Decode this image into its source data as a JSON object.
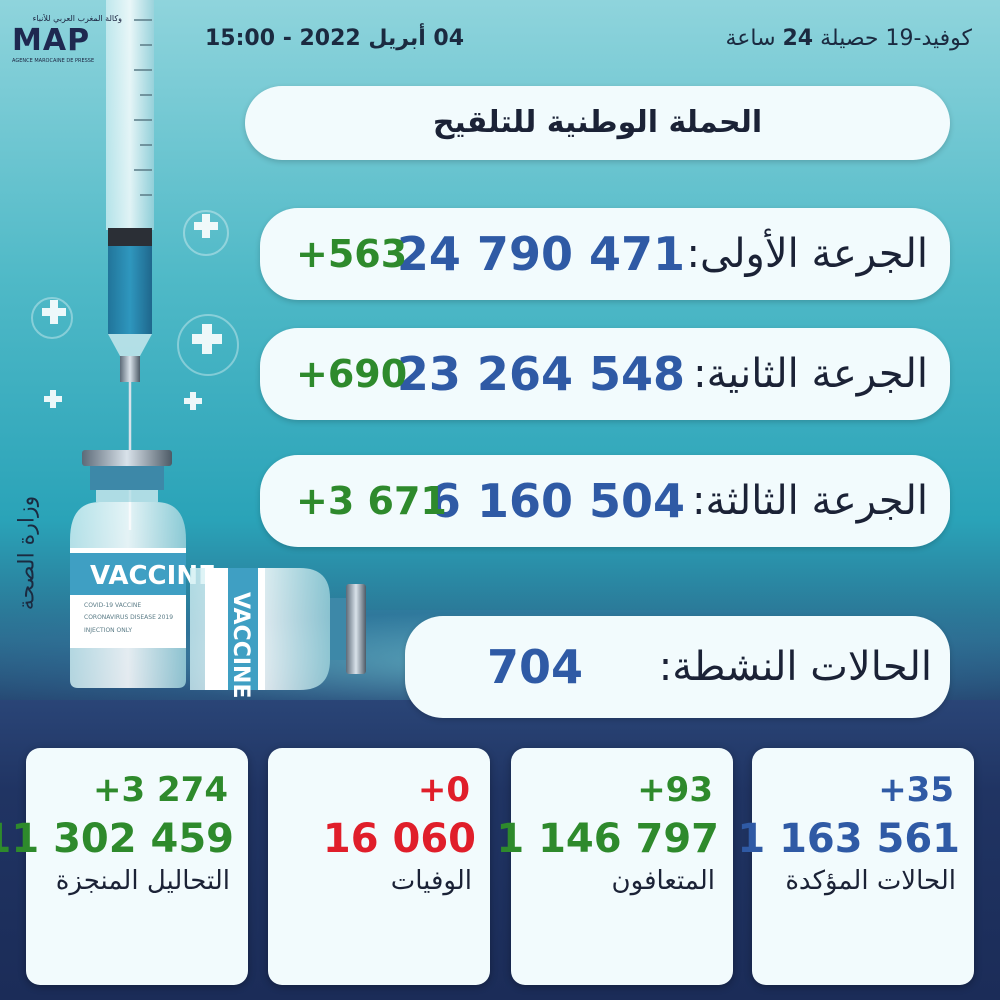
{
  "logo": {
    "top_text": "وكالة المغرب العربي للأنباء",
    "name": "MAP",
    "subtitle": "AGENCE MAROCAINE DE PRESSE"
  },
  "header": {
    "date_time": "04 أبريل 2022 - 15:00",
    "covid_prefix": "كوفيد-19   حصيلة ",
    "covid_hours": "24",
    "covid_suffix": " ساعة"
  },
  "campaign": {
    "title": "الحملة الوطنية للتلقيح"
  },
  "doses": [
    {
      "label": "الجرعة الأولى:",
      "value": "24 790 471",
      "delta": "+563"
    },
    {
      "label": "الجرعة الثانية:",
      "value": "23 264 548",
      "delta": "+690"
    },
    {
      "label": "الجرعة الثالثة:",
      "value": "6 160 504",
      "delta": "+3 671"
    }
  ],
  "active": {
    "label": "الحالات النشطة:",
    "value": "704"
  },
  "stats": [
    {
      "label": "الحالات المؤكدة",
      "value": "1 163 561",
      "delta": "+35",
      "value_color": "#2f5aa5",
      "delta_color": "#2f5aa5"
    },
    {
      "label": "المتعافون",
      "value": "1 146 797",
      "delta": "+93",
      "value_color": "#2e8a2c",
      "delta_color": "#2e8a2c"
    },
    {
      "label": "الوفيات",
      "value": "16 060",
      "delta": "+0",
      "value_color": "#e01e2a",
      "delta_color": "#e01e2a"
    },
    {
      "label": "التحاليل المنجزة",
      "value": "11 302 459",
      "delta": "+3 274",
      "value_color": "#2e8a2c",
      "delta_color": "#2e8a2c"
    }
  ],
  "ministry": "وزارة الصحة",
  "vial": {
    "label": "VACCINE",
    "small_text": "COVID-19 VACCINE",
    "small_text2": "CORONAVIRUS DISEASE 2019",
    "small_text3": "INJECTION ONLY"
  },
  "colors": {
    "blue": "#2f5aa5",
    "green": "#2e8a2c",
    "red": "#e01e2a",
    "dark": "#1b2236"
  }
}
